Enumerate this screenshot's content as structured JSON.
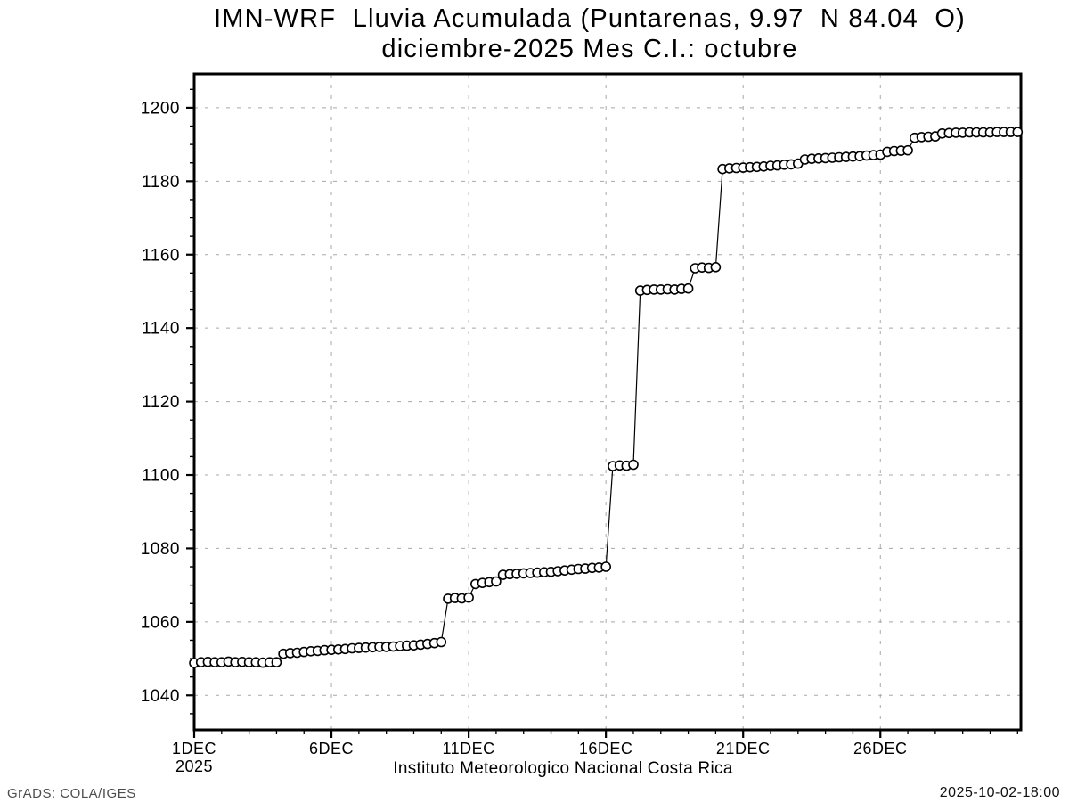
{
  "header": {
    "title_line1": "IMN-WRF  Lluvia Acumulada (Puntarenas, 9.97  N 84.04  O)",
    "title_line2": "diciembre-2025 Mes C.I.: octubre"
  },
  "footer": {
    "left_stamp": "GrADS: COLA/IGES",
    "right_timestamp": "2025-10-02-18:00"
  },
  "chart_data": {
    "type": "line",
    "title": "IMN-WRF  Lluvia Acumulada (Puntarenas, 9.97  N 84.04  O)",
    "subtitle": "diciembre-2025 Mes C.I.: octubre",
    "xlabel": "Instituto Meteorologico Nacional Costa Rica",
    "ylabel": "",
    "x_unit": "day of December 2025, 6-hourly",
    "x_start": 1,
    "x_step": 0.25,
    "values": [
      1048.8,
      1049.0,
      1049.1,
      1049.0,
      1049.0,
      1049.2,
      1049.0,
      1049.1,
      1049.0,
      1049.0,
      1048.9,
      1049.0,
      1049.0,
      1051.3,
      1051.5,
      1051.6,
      1051.8,
      1052.0,
      1052.1,
      1052.3,
      1052.4,
      1052.5,
      1052.6,
      1052.8,
      1052.9,
      1053.0,
      1053.1,
      1053.2,
      1053.2,
      1053.3,
      1053.4,
      1053.5,
      1053.6,
      1053.8,
      1054.0,
      1054.2,
      1054.5,
      1066.3,
      1066.5,
      1066.4,
      1066.6,
      1070.3,
      1070.6,
      1070.8,
      1071.0,
      1072.8,
      1073.0,
      1073.1,
      1073.2,
      1073.3,
      1073.4,
      1073.5,
      1073.6,
      1073.8,
      1074.0,
      1074.2,
      1074.4,
      1074.5,
      1074.7,
      1074.8,
      1075.0,
      1102.4,
      1102.6,
      1102.5,
      1102.8,
      1150.2,
      1150.4,
      1150.5,
      1150.5,
      1150.6,
      1150.5,
      1150.7,
      1150.8,
      1156.3,
      1156.5,
      1156.4,
      1156.6,
      1183.3,
      1183.5,
      1183.6,
      1183.7,
      1183.8,
      1183.9,
      1184.0,
      1184.2,
      1184.3,
      1184.5,
      1184.6,
      1184.8,
      1185.9,
      1186.1,
      1186.2,
      1186.3,
      1186.4,
      1186.5,
      1186.6,
      1186.7,
      1186.8,
      1187.0,
      1187.1,
      1187.2,
      1188.0,
      1188.2,
      1188.3,
      1188.4,
      1191.8,
      1192.0,
      1192.1,
      1192.2,
      1193.0,
      1193.1,
      1193.2,
      1193.2,
      1193.3,
      1193.3,
      1193.3,
      1193.3,
      1193.4,
      1193.4,
      1193.4,
      1193.4
    ],
    "xlim": [
      1,
      31.12
    ],
    "ylim": [
      1030.6,
      1209.2
    ],
    "yticks": [
      1040,
      1060,
      1080,
      1100,
      1120,
      1140,
      1160,
      1180,
      1200
    ],
    "y_minor_step": 5,
    "xticks": [
      {
        "day": 1,
        "label": "1DEC",
        "sublabel": "2025"
      },
      {
        "day": 6,
        "label": "6DEC"
      },
      {
        "day": 11,
        "label": "11DEC"
      },
      {
        "day": 16,
        "label": "16DEC"
      },
      {
        "day": 21,
        "label": "21DEC"
      },
      {
        "day": 26,
        "label": "26DEC"
      }
    ],
    "x_minor_step": 1,
    "grid": true,
    "legend": null,
    "line_color": "#000000",
    "grid_color": "#a8a8a8",
    "axis_color": "#000000",
    "marker": {
      "shape": "open-circle",
      "radius": 5,
      "stroke": "#000000",
      "fill": "#ffffff"
    }
  }
}
